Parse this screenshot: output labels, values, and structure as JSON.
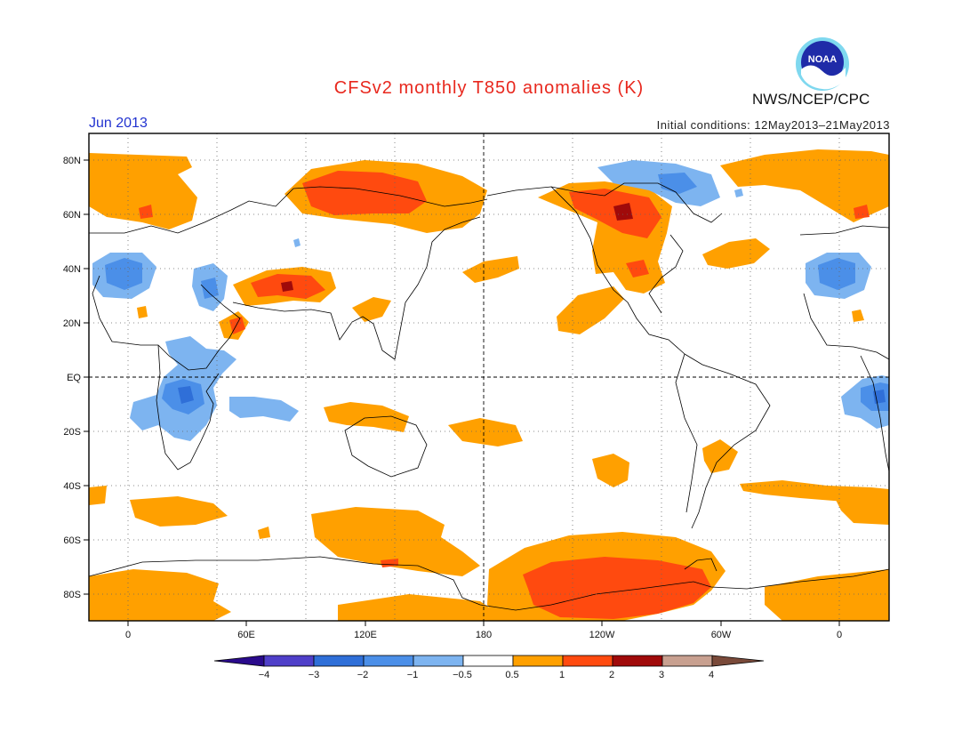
{
  "title": "CFSv2 monthly T850 anomalies (K)",
  "organization": "NWS/NCEP/CPC",
  "logo_text": "NOAA",
  "valid_month": "Jun 2013",
  "initial_conditions": "Initial conditions: 12May2013–21May2013",
  "map": {
    "projection": "cylindrical equidistant",
    "lon_tick_labels": [
      "0",
      "60E",
      "120E",
      "180",
      "120W",
      "60W",
      "0"
    ],
    "lat_tick_labels": [
      "80N",
      "60N",
      "40N",
      "20N",
      "EQ",
      "20S",
      "40S",
      "60S",
      "80S"
    ],
    "grid": "dotted",
    "reference_lines": [
      "EQ",
      "180"
    ]
  },
  "colorbar": {
    "labels": [
      "−4",
      "−3",
      "−2",
      "−1",
      "−0.5",
      "0.5",
      "1",
      "2",
      "3",
      "4"
    ],
    "colors": [
      "#2a0a8c",
      "#4f3fc9",
      "#2f6fd8",
      "#4b8fe8",
      "#7db4f0",
      "#ffffff",
      "#ffa000",
      "#ff4a0f",
      "#a00a0a",
      "#c8a090",
      "#7a4a3a"
    ]
  }
}
